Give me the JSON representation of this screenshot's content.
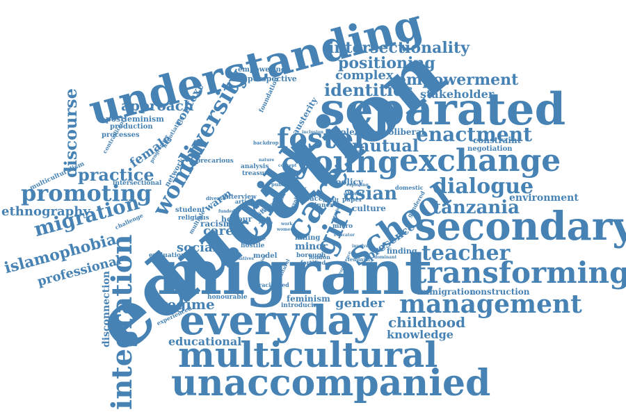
{
  "color": "#4682b4",
  "words": {
    "education": "education",
    "migrant": "migrant",
    "understanding": "understanding",
    "separated": "separated",
    "secondary": "secondary",
    "everyday": "everyday",
    "multicultural": "multicultural",
    "unaccompanied": "unaccompanied",
    "transforming": "transforming",
    "management": "management",
    "young": "young",
    "exchange": "exchange",
    "child": "child",
    "care": "care",
    "school": "school",
    "foster": "foster",
    "girl": "girl",
    "teacher": "teacher",
    "dialogue": "dialogue",
    "tanzania": "tanzania",
    "enactment": "enactment",
    "mutual": "mutual",
    "intersectionality": "intersectionality",
    "positioning": "positioning",
    "empowerment": "empowerment",
    "identities": "identities",
    "complex": "complex",
    "stakeholder": "stakeholder",
    "diversity": "diversity",
    "woman": "woman",
    "promoting": "promoting",
    "migration": "migration",
    "practice": "practice",
    "discourse": "discourse",
    "approach": "approach",
    "ethnography": "ethnography",
    "islamophobia": "islamophobia",
    "professional": "professional",
    "integration": "integration",
    "disconnection": "disconnection",
    "regime": "regime",
    "educational": "educational",
    "childhood": "childhood",
    "knowledge": "knowledge",
    "gender": "gender",
    "feminism": "feminism",
    "asian": "asian",
    "environment": "environment",
    "immigration": "immigration",
    "construction": "construction",
    "context": "context",
    "female": "female",
    "social": "social",
    "carer": "carer",
    "racism": "racism",
    "minor": "minor",
    "presence": "presence",
    "warm": "warm",
    "honour": "honour",
    "violence": "violence",
    "neoliberal": "neoliberal",
    "constraint": "constraint",
    "negotiation": "negotiation",
    "perspective": "perspective",
    "empowering": "empowering",
    "postfeminism": "postfeminism",
    "production": "production",
    "processes": "processes",
    "network": "network",
    "precarious": "precarious",
    "analysis": "analysis",
    "treasure": "treasure",
    "student": "student",
    "religious": "religious",
    "intersectional": "intersectional",
    "multiculturalism": "multiculturalism",
    "challenge": "challenge",
    "evaluation": "evaluation",
    "honourable": "honourable",
    "experienced": "experienced",
    "interview": "interview",
    "policy": "policy",
    "culture": "culture",
    "finding": "finding",
    "model": "model",
    "borough": "borough",
    "hostile": "hostile",
    "killing": "killing",
    "introducing": "introducing",
    "racialised": "racialised",
    "london": "london",
    "austerity": "austerity",
    "foundation": "foundation",
    "contradictory": "contradictory",
    "negotiating": "negotiating",
    "programme": "programme",
    "backdrop": "backdrop",
    "inclusion": "inclusion",
    "gendered": "gendered",
    "domestic": "domestic",
    "paper": "paper",
    "adult": "adult",
    "absent": "absent",
    "study": "study",
    "race": "race",
    "inner": "inner",
    "state": "state",
    "city": "city",
    "article": "article",
    "multiple": "multiple",
    "space": "space",
    "fortified": "fortified",
    "feminist": "feminist",
    "micro": "micro",
    "diverse": "diverse",
    "public": "public",
    "concept": "concept",
    "stage": "stage",
    "year": "year",
    "relatives": "relatives",
    "institution": "institution",
    "cultural": "cultural",
    "dominant": "dominant",
    "experience": "experience",
    "involved": "involved",
    "educator": "educator",
    "exploring": "exploring",
    "funded": "funded",
    "explore": "explore",
    "nature": "nature",
    "seminal": "seminal",
    "work": "work",
    "women": "women",
    "rights": "rights"
  }
}
